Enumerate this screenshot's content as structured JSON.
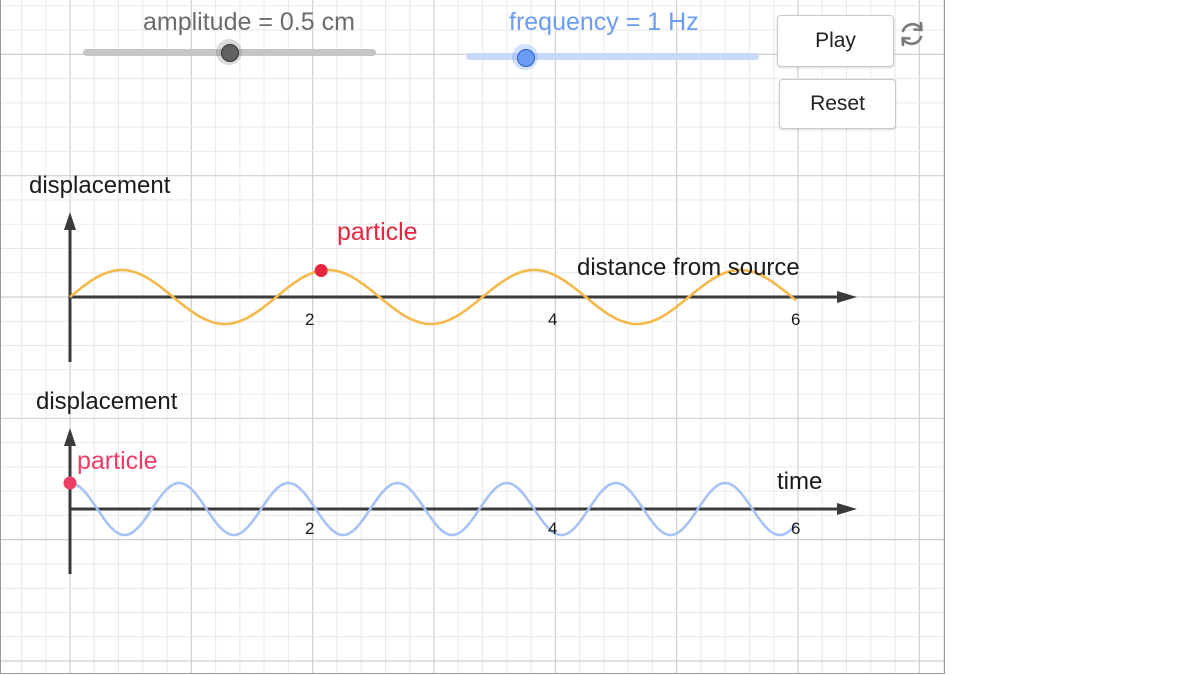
{
  "amplitude_slider": {
    "label": "amplitude = 0.5 cm",
    "value_fraction": 0.5,
    "color": "#6b6b6b"
  },
  "frequency_slider": {
    "label": "frequency = 1 Hz",
    "value_fraction": 0.2,
    "color": "#6b9cf5"
  },
  "buttons": {
    "play": "Play",
    "reset": "Reset"
  },
  "icons": {
    "reload": "refresh-icon"
  },
  "colors": {
    "grid_minor": "#e9e9e9",
    "grid_major": "#cfcfcf",
    "axis": "#3a3a3a",
    "wave_space": "#f5b84a",
    "wave_time": "#a7c3f5",
    "particle_top": "#e8253f",
    "particle_bottom": "#ef3d66"
  },
  "graph_space": {
    "y_label": "displacement",
    "x_label": "distance from source",
    "particle_label": "particle",
    "ticks": [
      "2",
      "4",
      "6"
    ],
    "tick_values": [
      2,
      4,
      6
    ],
    "wavelength": 1.7,
    "x_end": 6,
    "particle_x": 2.07
  },
  "graph_time": {
    "y_label": "displacement",
    "x_label": "time",
    "particle_label": "particle",
    "ticks": [
      "2",
      "4",
      "6"
    ],
    "tick_values": [
      2,
      4,
      6
    ],
    "period": 0.9,
    "x_end": 6,
    "particle_t": 0
  }
}
